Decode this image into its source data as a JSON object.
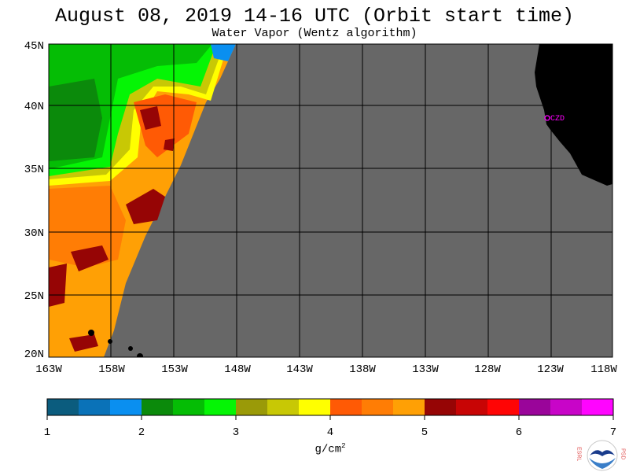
{
  "title": "August 08, 2019  14-16 UTC  (Orbit start time)",
  "subtitle": "Water Vapor (Wentz algorithm)",
  "lat_labels": [
    "45N",
    "40N",
    "35N",
    "30N",
    "25N",
    "20N"
  ],
  "lon_labels": [
    "163W",
    "158W",
    "153W",
    "148W",
    "143W",
    "138W",
    "133W",
    "128W",
    "123W",
    "118W"
  ],
  "station_label": "CZD",
  "colorbar": {
    "ticks": [
      "1",
      "2",
      "3",
      "4",
      "5",
      "6",
      "7"
    ],
    "unit_base": "g/cm",
    "unit_exp": "2",
    "colors": [
      "#0b5c7e",
      "#0a72b8",
      "#0a8ff0",
      "#0b8a0b",
      "#05bd05",
      "#05f505",
      "#9a9a08",
      "#c8c805",
      "#ffff00",
      "#ff5a05",
      "#ff7d05",
      "#ffa005",
      "#960505",
      "#c80505",
      "#ff0505",
      "#9a059a",
      "#c805c8",
      "#ff05ff"
    ]
  },
  "logo_letters_left": "ESRL",
  "logo_letters_right": "PSD",
  "colors": {
    "no_data": "#676767",
    "land": "#000000",
    "grid": "#000000",
    "station": "#ff00ff"
  }
}
